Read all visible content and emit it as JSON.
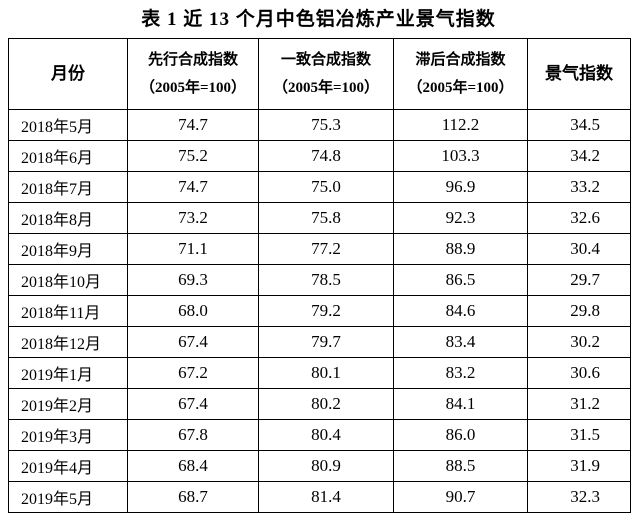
{
  "title": "表 1  近 13 个月中色铝冶炼产业景气指数",
  "table": {
    "headers": [
      {
        "label": "月份"
      },
      {
        "label": "先行合成指数",
        "sub": "（2005年=100）"
      },
      {
        "label": "一致合成指数",
        "sub": "（2005年=100）"
      },
      {
        "label": "滞后合成指数",
        "sub": "（2005年=100）"
      },
      {
        "label": "景气指数"
      }
    ],
    "rows": [
      [
        "2018年5月",
        "74.7",
        "75.3",
        "112.2",
        "34.5"
      ],
      [
        "2018年6月",
        "75.2",
        "74.8",
        "103.3",
        "34.2"
      ],
      [
        "2018年7月",
        "74.7",
        "75.0",
        "96.9",
        "33.2"
      ],
      [
        "2018年8月",
        "73.2",
        "75.8",
        "92.3",
        "32.6"
      ],
      [
        "2018年9月",
        "71.1",
        "77.2",
        "88.9",
        "30.4"
      ],
      [
        "2018年10月",
        "69.3",
        "78.5",
        "86.5",
        "29.7"
      ],
      [
        "2018年11月",
        "68.0",
        "79.2",
        "84.6",
        "29.8"
      ],
      [
        "2018年12月",
        "67.4",
        "79.7",
        "83.4",
        "30.2"
      ],
      [
        "2019年1月",
        "67.2",
        "80.1",
        "83.2",
        "30.6"
      ],
      [
        "2019年2月",
        "67.4",
        "80.2",
        "84.1",
        "31.2"
      ],
      [
        "2019年3月",
        "67.8",
        "80.4",
        "86.0",
        "31.5"
      ],
      [
        "2019年4月",
        "68.4",
        "80.9",
        "88.5",
        "31.9"
      ],
      [
        "2019年5月",
        "68.7",
        "81.4",
        "90.7",
        "32.3"
      ]
    ]
  }
}
